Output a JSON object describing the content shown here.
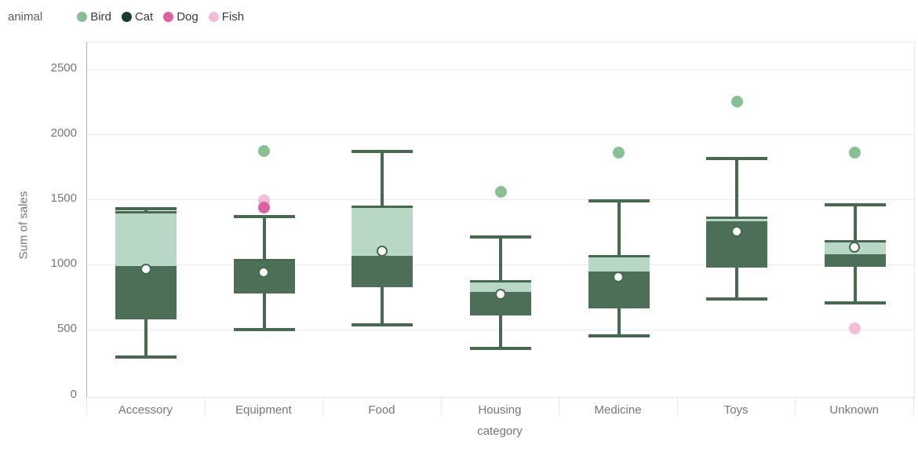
{
  "chart_data": {
    "type": "box",
    "title": "",
    "xlabel": "category",
    "ylabel": "Sum of sales",
    "ylim": [
      0,
      2700
    ],
    "y_ticks": [
      0,
      500,
      1000,
      1500,
      2000,
      2500
    ],
    "grid": true,
    "legend": {
      "title": "animal",
      "position": "top-left",
      "items": [
        {
          "label": "Bird",
          "color": "#86c093"
        },
        {
          "label": "Cat",
          "color": "#1c3c2b"
        },
        {
          "label": "Dog",
          "color": "#e0609e"
        },
        {
          "label": "Fish",
          "color": "#f4bcd8"
        }
      ]
    },
    "categories": [
      "Accessory",
      "Equipment",
      "Food",
      "Housing",
      "Medicine",
      "Toys",
      "Unknown"
    ],
    "boxes": [
      {
        "category": "Accessory",
        "min": 290,
        "q1": 580,
        "median": 990,
        "mean": 965,
        "q3": 1405,
        "max": 1430,
        "outliers": []
      },
      {
        "category": "Equipment",
        "min": 505,
        "q1": 780,
        "median": 1035,
        "mean": 940,
        "q3": 1035,
        "max": 1370,
        "outliers": [
          {
            "animal": "Bird",
            "value": 1870
          },
          {
            "animal": "Fish",
            "value": 1490
          },
          {
            "animal": "Dog",
            "value": 1440
          }
        ]
      },
      {
        "category": "Food",
        "min": 540,
        "q1": 830,
        "median": 1065,
        "mean": 1100,
        "q3": 1450,
        "max": 1870,
        "outliers": []
      },
      {
        "category": "Housing",
        "min": 360,
        "q1": 610,
        "median": 790,
        "mean": 770,
        "q3": 875,
        "max": 1210,
        "outliers": [
          {
            "animal": "Bird",
            "value": 1560
          }
        ]
      },
      {
        "category": "Medicine",
        "min": 455,
        "q1": 665,
        "median": 945,
        "mean": 900,
        "q3": 1070,
        "max": 1490,
        "outliers": [
          {
            "animal": "Bird",
            "value": 1860
          }
        ]
      },
      {
        "category": "Toys",
        "min": 735,
        "q1": 980,
        "median": 1335,
        "mean": 1250,
        "q3": 1365,
        "max": 1815,
        "outliers": [
          {
            "animal": "Bird",
            "value": 2250
          }
        ]
      },
      {
        "category": "Unknown",
        "min": 705,
        "q1": 985,
        "median": 1080,
        "mean": 1130,
        "q3": 1180,
        "max": 1460,
        "outliers": [
          {
            "animal": "Bird",
            "value": 1860
          },
          {
            "animal": "Fish",
            "value": 510
          }
        ]
      }
    ],
    "style": {
      "box_dark": "#4d6e57",
      "box_light": "#b8d7c5",
      "line": "#46694f",
      "mean_fill": "#ffffff",
      "mean_ring": "#46694f",
      "grid_color": "#ececec",
      "border_color": "#e6e6e6",
      "axis_line_color": "#b1b1b1",
      "text_muted": "#777777",
      "legend_text": "#3b3a39"
    }
  }
}
